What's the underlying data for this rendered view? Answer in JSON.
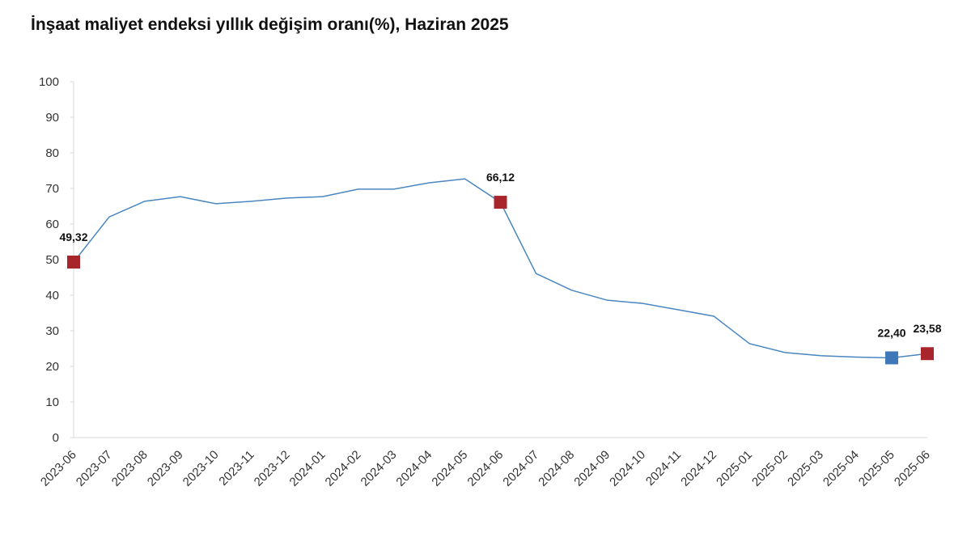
{
  "chart_data": {
    "type": "line",
    "title": "İnşaat maliyet endeksi yıllık değişim oranı(%), Haziran 2025",
    "categories": [
      "2023-06",
      "2023-07",
      "2023-08",
      "2023-09",
      "2023-10",
      "2023-11",
      "2023-12",
      "2024-01",
      "2024-02",
      "2024-03",
      "2024-04",
      "2024-05",
      "2024-06",
      "2024-07",
      "2024-08",
      "2024-09",
      "2024-10",
      "2024-11",
      "2024-12",
      "2025-01",
      "2025-02",
      "2025-03",
      "2025-04",
      "2025-05",
      "2025-06"
    ],
    "values": [
      49.32,
      62.0,
      66.4,
      67.7,
      65.7,
      66.4,
      67.3,
      67.7,
      69.8,
      69.8,
      71.6,
      72.7,
      66.12,
      46.1,
      41.4,
      38.6,
      37.7,
      35.9,
      34.1,
      26.4,
      23.9,
      23.0,
      22.6,
      22.4,
      23.58
    ],
    "value_labels": [
      "49,32",
      null,
      null,
      null,
      null,
      null,
      null,
      null,
      null,
      null,
      null,
      null,
      "66,12",
      null,
      null,
      null,
      null,
      null,
      null,
      null,
      null,
      null,
      null,
      "22,40",
      "23,58"
    ],
    "marker_colors": [
      "#a8262b",
      null,
      null,
      null,
      null,
      null,
      null,
      null,
      null,
      null,
      null,
      null,
      "#a8262b",
      null,
      null,
      null,
      null,
      null,
      null,
      null,
      null,
      null,
      null,
      "#3e78b8",
      "#a8262b"
    ],
    "color": "#4a86c0",
    "ylim": [
      0,
      100
    ],
    "yticks": [
      0,
      10,
      20,
      30,
      40,
      50,
      60,
      70,
      80,
      90,
      100
    ],
    "grid": false
  }
}
